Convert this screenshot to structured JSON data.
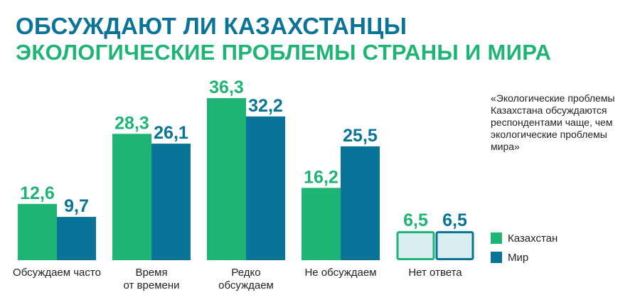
{
  "header": {
    "title": "ОБСУЖДАЮТ ЛИ КАЗАХСТАНЦЫ",
    "subtitle": "ЭКОЛОГИЧЕСКИЕ ПРОБЛЕМЫ СТРАНЫ И МИРА"
  },
  "note": "«Экологические проблемы Казахстана обсуждаются респондентами чаще, чем экологические проблемы мира»",
  "colors": {
    "kazakhstan": "#1db474",
    "world": "#0a7398",
    "no_answer_fill": "#d9eef0",
    "title": "#0a7398",
    "subtitle": "#1db474"
  },
  "chart_data": {
    "type": "bar",
    "categories": [
      [
        "Обсуждаем часто"
      ],
      [
        "Время",
        "от времени"
      ],
      [
        "Редко",
        "обсуждаем"
      ],
      [
        "Не обсуждаем"
      ],
      [
        "Нет ответа"
      ]
    ],
    "series": [
      {
        "name": "Казахстан",
        "values": [
          12.6,
          28.3,
          36.3,
          16.2,
          6.5
        ],
        "labels": [
          "12,6",
          "28,3",
          "36,3",
          "16,2",
          "6,5"
        ]
      },
      {
        "name": "Мир",
        "values": [
          9.7,
          26.1,
          32.2,
          25.5,
          6.5
        ],
        "labels": [
          "9,7",
          "26,1",
          "32,2",
          "25,5",
          "6,5"
        ]
      }
    ],
    "legend_position": "right",
    "grid": false,
    "ylim": [
      0,
      36.3
    ]
  }
}
